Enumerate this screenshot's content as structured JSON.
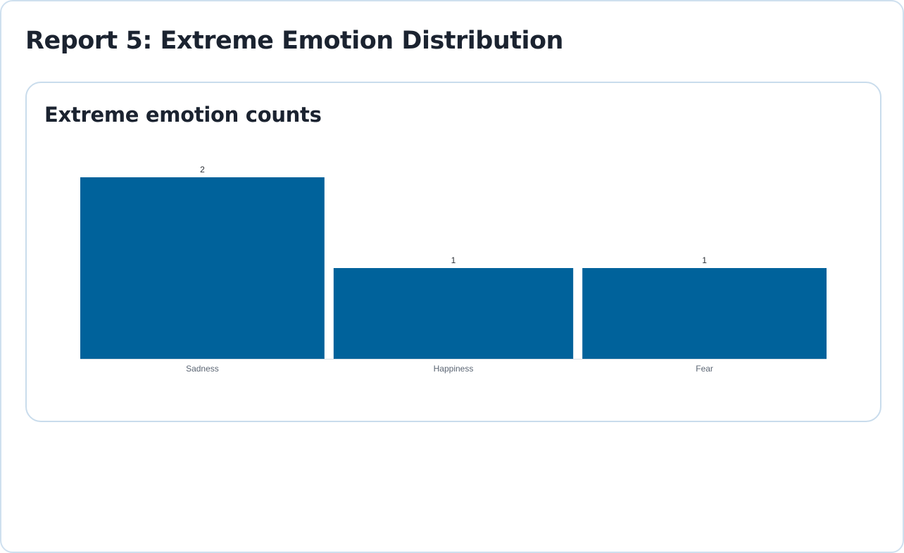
{
  "page": {
    "title": "Report 5: Extreme Emotion Distribution"
  },
  "card": {
    "title": "Extreme emotion counts"
  },
  "chart_data": {
    "type": "bar",
    "title": "Extreme emotion counts",
    "categories": [
      "Sadness",
      "Happiness",
      "Fear"
    ],
    "values": [
      2,
      1,
      1
    ],
    "xlabel": "",
    "ylabel": "",
    "ylim": [
      0,
      2
    ],
    "grid": false,
    "legend": "none",
    "data_labels": true,
    "bar_color": "#00629b"
  }
}
